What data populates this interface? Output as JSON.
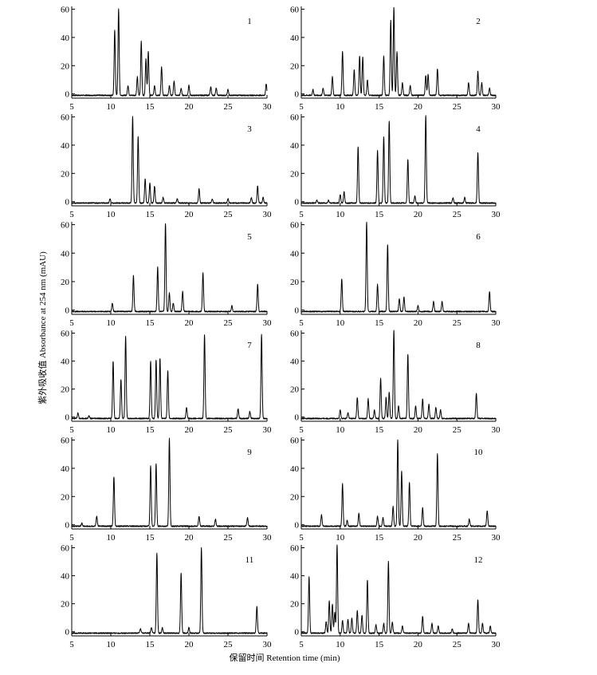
{
  "figure": {
    "ylabel": "紫外吸收值 Absorbance at 254 nm (mAU)",
    "xlabel": "保留时间 Retention time (min)"
  },
  "chart_data": [
    {
      "type": "line",
      "label": "1",
      "xlim": [
        5,
        30
      ],
      "ylim": [
        -3,
        62
      ],
      "xticks": [
        5,
        10,
        15,
        20,
        25,
        30
      ],
      "yticks": [
        0,
        20,
        40,
        60
      ],
      "baseline": -1,
      "peaks": [
        [
          10.5,
          45
        ],
        [
          11.0,
          60
        ],
        [
          12.2,
          6
        ],
        [
          13.4,
          12
        ],
        [
          13.9,
          37
        ],
        [
          14.5,
          25
        ],
        [
          14.8,
          30
        ],
        [
          15.6,
          6
        ],
        [
          16.5,
          19
        ],
        [
          17.5,
          6
        ],
        [
          18.1,
          9
        ],
        [
          19.0,
          4
        ],
        [
          20.0,
          6
        ],
        [
          22.8,
          5
        ],
        [
          23.5,
          4
        ],
        [
          25.0,
          3
        ],
        [
          29.9,
          7
        ]
      ]
    },
    {
      "type": "line",
      "label": "2",
      "xlim": [
        5,
        30
      ],
      "ylim": [
        -3,
        62
      ],
      "xticks": [
        5,
        10,
        15,
        20,
        25,
        30
      ],
      "yticks": [
        0,
        20,
        40,
        60
      ],
      "baseline": -1,
      "peaks": [
        [
          6.5,
          3
        ],
        [
          7.8,
          4
        ],
        [
          9.0,
          12
        ],
        [
          10.3,
          30
        ],
        [
          11.8,
          17
        ],
        [
          12.5,
          27
        ],
        [
          12.9,
          26
        ],
        [
          13.5,
          10
        ],
        [
          15.6,
          27
        ],
        [
          16.5,
          52
        ],
        [
          16.9,
          61
        ],
        [
          17.3,
          30
        ],
        [
          18.0,
          8
        ],
        [
          19.0,
          6
        ],
        [
          21.0,
          13
        ],
        [
          21.3,
          14
        ],
        [
          22.5,
          18
        ],
        [
          26.5,
          8
        ],
        [
          27.7,
          16
        ],
        [
          28.2,
          8
        ],
        [
          29.2,
          4
        ]
      ]
    },
    {
      "type": "line",
      "label": "3",
      "xlim": [
        5,
        30
      ],
      "ylim": [
        -3,
        62
      ],
      "xticks": [
        5,
        10,
        15,
        20,
        25,
        30
      ],
      "yticks": [
        0,
        20,
        40,
        60
      ],
      "baseline": -1,
      "peaks": [
        [
          9.9,
          2
        ],
        [
          12.8,
          60
        ],
        [
          13.5,
          46
        ],
        [
          14.4,
          16
        ],
        [
          15.0,
          13
        ],
        [
          15.6,
          11
        ],
        [
          16.7,
          3
        ],
        [
          18.5,
          2
        ],
        [
          21.3,
          9
        ],
        [
          23.0,
          2
        ],
        [
          25.0,
          2
        ],
        [
          28.0,
          3
        ],
        [
          28.8,
          11
        ],
        [
          29.5,
          3
        ]
      ]
    },
    {
      "type": "line",
      "label": "4",
      "xlim": [
        5,
        30
      ],
      "ylim": [
        -3,
        62
      ],
      "xticks": [
        5,
        10,
        15,
        20,
        25,
        30
      ],
      "yticks": [
        0,
        20,
        40,
        60
      ],
      "baseline": -1,
      "peaks": [
        [
          7.0,
          1
        ],
        [
          8.5,
          1
        ],
        [
          10.0,
          5
        ],
        [
          10.5,
          7
        ],
        [
          12.3,
          39
        ],
        [
          14.8,
          36
        ],
        [
          15.6,
          46
        ],
        [
          16.3,
          57
        ],
        [
          18.7,
          30
        ],
        [
          19.6,
          4
        ],
        [
          21.0,
          61
        ],
        [
          24.5,
          3
        ],
        [
          26.0,
          3
        ],
        [
          27.7,
          35
        ]
      ]
    },
    {
      "type": "line",
      "label": "5",
      "xlim": [
        5,
        30
      ],
      "ylim": [
        -3,
        62
      ],
      "xticks": [
        5,
        10,
        15,
        20,
        25,
        30
      ],
      "yticks": [
        0,
        20,
        40,
        60
      ],
      "baseline": -1,
      "peaks": [
        [
          10.2,
          5
        ],
        [
          12.9,
          24
        ],
        [
          16.0,
          30
        ],
        [
          17.0,
          61
        ],
        [
          17.5,
          12
        ],
        [
          18.0,
          5
        ],
        [
          19.2,
          13
        ],
        [
          21.8,
          26
        ],
        [
          25.5,
          3
        ],
        [
          28.8,
          18
        ]
      ]
    },
    {
      "type": "line",
      "label": "6",
      "xlim": [
        5,
        30
      ],
      "ylim": [
        -3,
        62
      ],
      "xticks": [
        5,
        10,
        15,
        20,
        25,
        30
      ],
      "yticks": [
        0,
        20,
        40,
        60
      ],
      "baseline": -1,
      "peaks": [
        [
          10.2,
          22
        ],
        [
          13.4,
          62
        ],
        [
          14.8,
          18
        ],
        [
          16.1,
          46
        ],
        [
          17.6,
          8
        ],
        [
          18.2,
          9
        ],
        [
          20.0,
          3
        ],
        [
          22.0,
          6
        ],
        [
          23.1,
          6
        ],
        [
          29.2,
          13
        ]
      ]
    },
    {
      "type": "line",
      "label": "7",
      "xlim": [
        5,
        30
      ],
      "ylim": [
        -3,
        62
      ],
      "xticks": [
        5,
        10,
        15,
        20,
        25,
        30
      ],
      "yticks": [
        0,
        20,
        40,
        60
      ],
      "baseline": -1,
      "peaks": [
        [
          5.8,
          3
        ],
        [
          7.2,
          1
        ],
        [
          10.3,
          40
        ],
        [
          11.3,
          27
        ],
        [
          11.9,
          58
        ],
        [
          15.1,
          40
        ],
        [
          15.8,
          41
        ],
        [
          16.3,
          42
        ],
        [
          17.3,
          33
        ],
        [
          19.7,
          7
        ],
        [
          22.0,
          59
        ],
        [
          26.3,
          6
        ],
        [
          27.8,
          4
        ],
        [
          29.3,
          59
        ]
      ]
    },
    {
      "type": "line",
      "label": "8",
      "xlim": [
        5,
        30
      ],
      "ylim": [
        -3,
        62
      ],
      "xticks": [
        5,
        10,
        15,
        20,
        25,
        30
      ],
      "yticks": [
        0,
        20,
        40,
        60
      ],
      "baseline": -1,
      "peaks": [
        [
          10.0,
          5
        ],
        [
          11.0,
          3
        ],
        [
          12.2,
          14
        ],
        [
          13.6,
          13
        ],
        [
          14.4,
          5
        ],
        [
          15.2,
          28
        ],
        [
          15.9,
          14
        ],
        [
          16.3,
          18
        ],
        [
          16.9,
          62
        ],
        [
          17.5,
          8
        ],
        [
          18.7,
          45
        ],
        [
          19.7,
          8
        ],
        [
          20.6,
          13
        ],
        [
          21.4,
          9
        ],
        [
          22.3,
          7
        ],
        [
          22.9,
          5
        ],
        [
          27.5,
          17
        ]
      ]
    },
    {
      "type": "line",
      "label": "9",
      "xlim": [
        5,
        30
      ],
      "ylim": [
        -3,
        62
      ],
      "xticks": [
        5,
        10,
        15,
        20,
        25,
        30
      ],
      "yticks": [
        0,
        20,
        40,
        60
      ],
      "baseline": -1,
      "peaks": [
        [
          6.3,
          1
        ],
        [
          8.2,
          6
        ],
        [
          10.4,
          34
        ],
        [
          15.1,
          42
        ],
        [
          15.8,
          43
        ],
        [
          17.5,
          61
        ],
        [
          21.3,
          6
        ],
        [
          23.4,
          4
        ],
        [
          27.5,
          5
        ]
      ]
    },
    {
      "type": "line",
      "label": "10",
      "xlim": [
        5,
        30
      ],
      "ylim": [
        -3,
        62
      ],
      "xticks": [
        5,
        10,
        15,
        20,
        25,
        30
      ],
      "yticks": [
        0,
        20,
        40,
        60
      ],
      "baseline": -1,
      "peaks": [
        [
          7.6,
          7
        ],
        [
          10.3,
          29
        ],
        [
          10.9,
          3
        ],
        [
          12.4,
          8
        ],
        [
          14.8,
          6
        ],
        [
          15.5,
          5
        ],
        [
          16.8,
          13
        ],
        [
          17.4,
          60
        ],
        [
          17.9,
          38
        ],
        [
          18.9,
          30
        ],
        [
          20.6,
          12
        ],
        [
          22.5,
          50
        ],
        [
          26.6,
          4
        ],
        [
          28.9,
          10
        ]
      ]
    },
    {
      "type": "line",
      "label": "11",
      "xlim": [
        5,
        30
      ],
      "ylim": [
        -3,
        62
      ],
      "xticks": [
        5,
        10,
        15,
        20,
        25,
        30
      ],
      "yticks": [
        0,
        20,
        40,
        60
      ],
      "baseline": -1,
      "peaks": [
        [
          13.8,
          2
        ],
        [
          15.2,
          3
        ],
        [
          15.9,
          56
        ],
        [
          16.6,
          3
        ],
        [
          19.0,
          42
        ],
        [
          20.0,
          3
        ],
        [
          21.6,
          60
        ],
        [
          28.7,
          18
        ]
      ]
    },
    {
      "type": "line",
      "label": "12",
      "xlim": [
        5,
        30
      ],
      "ylim": [
        -3,
        62
      ],
      "xticks": [
        5,
        10,
        15,
        20,
        25,
        30
      ],
      "yticks": [
        0,
        20,
        40,
        60
      ],
      "baseline": -1,
      "peaks": [
        [
          6.0,
          39
        ],
        [
          8.2,
          7
        ],
        [
          8.6,
          22
        ],
        [
          9.0,
          20
        ],
        [
          9.3,
          14
        ],
        [
          9.6,
          62
        ],
        [
          10.3,
          8
        ],
        [
          11.0,
          9
        ],
        [
          11.5,
          10
        ],
        [
          12.2,
          15
        ],
        [
          12.8,
          12
        ],
        [
          13.5,
          37
        ],
        [
          14.6,
          5
        ],
        [
          15.6,
          6
        ],
        [
          16.2,
          50
        ],
        [
          16.7,
          7
        ],
        [
          18.0,
          4
        ],
        [
          20.6,
          11
        ],
        [
          21.8,
          6
        ],
        [
          22.6,
          4
        ],
        [
          24.4,
          2
        ],
        [
          26.5,
          6
        ],
        [
          27.7,
          23
        ],
        [
          28.3,
          6
        ],
        [
          29.3,
          4
        ]
      ]
    }
  ]
}
